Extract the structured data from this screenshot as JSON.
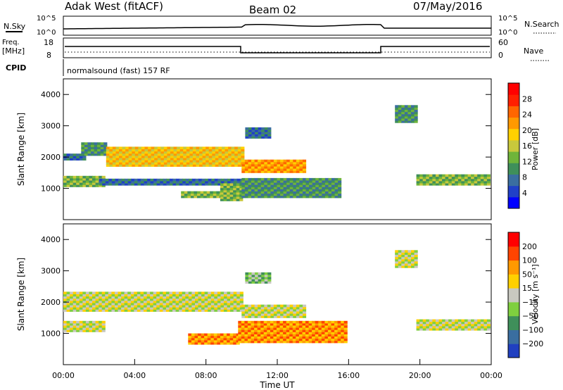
{
  "header": {
    "radar": "Adak West (fitACF)",
    "beam": "Beam 02",
    "date": "07/May/2016"
  },
  "status_panels": {
    "nsky": {
      "label": "N.Sky",
      "ticks": [
        "10^5",
        "10^0"
      ]
    },
    "freq": {
      "label_line1": "Freq.",
      "label_line2": "[MHz]",
      "ticks": [
        "18",
        "8"
      ]
    },
    "cpid": {
      "label": "CPID",
      "text": "normalsound (fast) 157 RF"
    },
    "right_nsearch": {
      "label": "N.Search",
      "ticks": [
        "10^5",
        "10^0"
      ]
    },
    "right_nave": {
      "label": "Nave",
      "ticks": [
        "60",
        "0"
      ]
    }
  },
  "chart_data": [
    {
      "type": "heatmap",
      "name": "power",
      "ylabel": "Slant Range [km]",
      "yticks": [
        "1000",
        "2000",
        "3000",
        "4000"
      ],
      "ylim": [
        0,
        4500
      ],
      "colorbar": {
        "label": "Power [dB]",
        "ticks": [
          "4",
          "8",
          "12",
          "16",
          "20",
          "24",
          "28"
        ]
      },
      "colors": [
        "#0000ff",
        "#2040c8",
        "#3a6ea0",
        "#3f8f5a",
        "#6fb43a",
        "#c8c83c",
        "#ffd000",
        "#ff9900",
        "#ff6600",
        "#ff2000",
        "#ff0000"
      ],
      "features": [
        {
          "x": [
            0.0,
            2.3
          ],
          "y": [
            1050,
            1350
          ],
          "level": 4
        },
        {
          "x": [
            0.0,
            1.1
          ],
          "y": [
            1900,
            2100
          ],
          "level": 2
        },
        {
          "x": [
            1.0,
            2.4
          ],
          "y": [
            2050,
            2450
          ],
          "level": 3
        },
        {
          "x": [
            2.4,
            10.0
          ],
          "y": [
            1700,
            2300
          ],
          "level": 6
        },
        {
          "x": [
            2.0,
            10.0
          ],
          "y": [
            1100,
            1300
          ],
          "level": 2
        },
        {
          "x": [
            6.6,
            9.6
          ],
          "y": [
            700,
            900
          ],
          "level": 4
        },
        {
          "x": [
            10.0,
            13.5
          ],
          "y": [
            1500,
            1900
          ],
          "level": 7
        },
        {
          "x": [
            8.8,
            10.0
          ],
          "y": [
            600,
            1100
          ],
          "level": 4
        },
        {
          "x": [
            10.0,
            15.5
          ],
          "y": [
            700,
            1300
          ],
          "level": 3
        },
        {
          "x": [
            10.2,
            11.5
          ],
          "y": [
            2600,
            2900
          ],
          "level": 2
        },
        {
          "x": [
            18.6,
            19.8
          ],
          "y": [
            3100,
            3600
          ],
          "level": 3
        },
        {
          "x": [
            19.8,
            23.9
          ],
          "y": [
            1100,
            1400
          ],
          "level": 4
        }
      ]
    },
    {
      "type": "heatmap",
      "name": "velocity",
      "ylabel": "Slant Range [km]",
      "yticks": [
        "1000",
        "2000",
        "3000",
        "4000"
      ],
      "ylim": [
        0,
        4500
      ],
      "colorbar": {
        "label": "Velocity [m s⁻¹]",
        "ticks": [
          "200",
          "100",
          "50",
          "15",
          "−15",
          "−50",
          "−100",
          "−200"
        ]
      },
      "colors": [
        "#2040c0",
        "#3a6ea0",
        "#3f8f5a",
        "#7fcf3f",
        "#c8c8c0",
        "#ffd000",
        "#ff9900",
        "#ff4400",
        "#ff0000"
      ],
      "features": [
        {
          "x": [
            0.0,
            2.3
          ],
          "y": [
            1050,
            1350
          ],
          "level": 4
        },
        {
          "x": [
            0.0,
            10.0
          ],
          "y": [
            1700,
            2300
          ],
          "level": 4
        },
        {
          "x": [
            10.0,
            13.5
          ],
          "y": [
            1500,
            1900
          ],
          "level": 4
        },
        {
          "x": [
            7.0,
            9.8
          ],
          "y": [
            650,
            950
          ],
          "level": 6
        },
        {
          "x": [
            9.8,
            15.8
          ],
          "y": [
            700,
            1350
          ],
          "level": 6
        },
        {
          "x": [
            10.2,
            11.5
          ],
          "y": [
            2600,
            2900
          ],
          "level": 3
        },
        {
          "x": [
            18.6,
            19.8
          ],
          "y": [
            3100,
            3600
          ],
          "level": 4
        },
        {
          "x": [
            19.8,
            23.9
          ],
          "y": [
            1100,
            1400
          ],
          "level": 4
        }
      ]
    }
  ],
  "time_axis": {
    "ticks": [
      "00:00",
      "04:00",
      "08:00",
      "12:00",
      "16:00",
      "20:00",
      "00:00"
    ],
    "label": "Time UT"
  }
}
